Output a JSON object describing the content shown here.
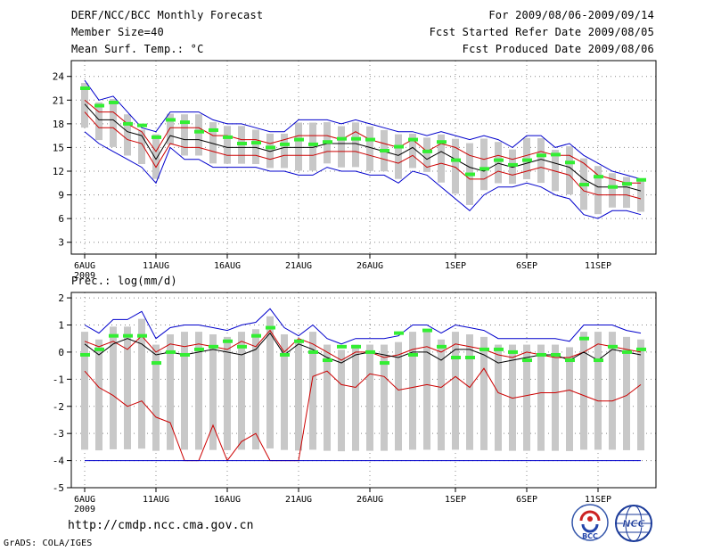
{
  "header": {
    "title": "DERF/NCC/BCC Monthly Forecast",
    "member_size": "Member Size=40",
    "variable": "Mean Surf. Temp.: °C",
    "period": "For 2009/08/06-2009/09/14",
    "started": "Fcst Started Refer Date 2009/08/05",
    "produced": "Fcst Produced Date 2009/08/06"
  },
  "precip_label": "Prec.: log(mm/d)",
  "url": "http://cmdp.ncc.cma.gov.cn",
  "grads_credit": "GrADS: COLA/IGES",
  "logos": {
    "bcc": "BCC",
    "ncc": "NCC"
  },
  "colors": {
    "envelope": "#0000cc",
    "spread": "#cc0000",
    "mean": "#000000",
    "box": "#c8c8c8",
    "median": "#33ee33",
    "grid": "#888888"
  },
  "chart_data": [
    {
      "type": "line",
      "name": "temperature",
      "ylabel": "Mean Surf. Temp. (°C)",
      "ylim": [
        1.5,
        26
      ],
      "yticks": [
        3,
        6,
        9,
        12,
        15,
        18,
        21,
        24
      ],
      "ytick_labels": [
        "3",
        "6",
        "9",
        "12",
        "15",
        "18",
        "21",
        "24"
      ],
      "xticks": [
        0,
        5,
        10,
        15,
        20,
        26,
        31,
        36
      ],
      "xtick_labels": [
        "6AUG",
        "11AUG",
        "16AUG",
        "21AUG",
        "26AUG",
        "1SEP",
        "6SEP",
        "11SEP"
      ],
      "year_label": "2009",
      "days": 40,
      "series": [
        {
          "name": "max",
          "color": "#0000cc",
          "values": [
            23.5,
            21,
            21.5,
            19.5,
            17.5,
            17,
            19.5,
            19.5,
            19.5,
            18.5,
            18,
            18,
            17.5,
            17,
            17,
            18.5,
            18.5,
            18.5,
            18,
            18.5,
            18,
            17.5,
            17,
            17,
            16.5,
            17,
            16.5,
            16,
            16.5,
            16,
            15,
            16.5,
            16.5,
            15,
            15.5,
            14,
            13,
            12,
            11.5,
            11
          ]
        },
        {
          "name": "upper",
          "color": "#cc0000",
          "values": [
            21,
            19.5,
            19.5,
            18,
            17,
            14.5,
            17.5,
            17.5,
            17.5,
            16.5,
            16.5,
            16,
            16,
            15.5,
            16,
            16.5,
            16.5,
            16.5,
            16,
            17,
            16,
            15.5,
            15,
            16,
            14.5,
            15.5,
            15,
            14,
            13.5,
            14,
            13.5,
            14,
            14.5,
            14,
            14,
            13,
            11.5,
            11,
            10.5,
            10.5
          ]
        },
        {
          "name": "mean",
          "color": "#000000",
          "values": [
            20.5,
            18.5,
            18.5,
            17,
            16.5,
            13.5,
            16.5,
            16,
            16,
            15.5,
            15,
            15,
            15,
            14.5,
            15,
            15,
            15,
            15.5,
            15.5,
            15.5,
            15,
            14.5,
            14,
            15,
            13.5,
            14.5,
            13.5,
            12.5,
            12,
            13,
            12.5,
            13,
            13.5,
            13,
            12.5,
            11,
            10,
            10,
            10,
            9.5
          ]
        },
        {
          "name": "lower",
          "color": "#cc0000",
          "values": [
            19.5,
            17.5,
            17.5,
            16,
            15.5,
            12.5,
            15.5,
            15,
            15,
            14.5,
            14,
            14,
            14,
            13.5,
            14,
            14,
            14,
            14.5,
            14.5,
            14.5,
            14,
            13.5,
            13,
            14,
            12.5,
            13,
            12.5,
            11,
            11,
            12,
            11.5,
            12,
            12.5,
            12,
            11.5,
            9.5,
            9,
            9,
            9,
            8.5
          ]
        },
        {
          "name": "min",
          "color": "#0000cc",
          "values": [
            17,
            15.5,
            14.5,
            13.5,
            12.5,
            10.5,
            15,
            13.5,
            13.5,
            12.5,
            12.5,
            12.5,
            12.5,
            12,
            12,
            11.5,
            11.5,
            12.5,
            12,
            12,
            11.5,
            11.5,
            10.5,
            12,
            11.5,
            10,
            8.5,
            7,
            9,
            10,
            10,
            10.5,
            10,
            9,
            8.5,
            6.5,
            6,
            7,
            7,
            6.5
          ]
        }
      ],
      "medians": [
        22.5,
        20.3,
        20.7,
        18,
        17.8,
        16.3,
        18.5,
        18.2,
        17,
        17.2,
        16.3,
        15.5,
        15.6,
        15,
        15.4,
        16,
        15.4,
        15.7,
        16.1,
        16.1,
        16,
        14.6,
        15.1,
        16,
        14.5,
        15.7,
        13.4,
        11.6,
        12.3,
        13.4,
        12.8,
        13.4,
        14,
        14.1,
        13.1,
        10.3,
        11.3,
        10,
        10.4,
        10.9
      ]
    },
    {
      "type": "line",
      "name": "precipitation",
      "ylabel": "Prec.: log(mm/d)",
      "ylim": [
        -5,
        2.2
      ],
      "yticks": [
        -5,
        -4,
        -3,
        -2,
        -1,
        0,
        1,
        2
      ],
      "ytick_labels": [
        "-5",
        "-4",
        "-3",
        "-2",
        "-1",
        "0",
        "1",
        "2"
      ],
      "xticks": [
        0,
        5,
        10,
        15,
        20,
        26,
        31,
        36
      ],
      "xtick_labels": [
        "6AUG",
        "11AUG",
        "16AUG",
        "21AUG",
        "26AUG",
        "1SEP",
        "6SEP",
        "11SEP"
      ],
      "year_label": "2009",
      "days": 40,
      "series": [
        {
          "name": "max",
          "color": "#0000cc",
          "values": [
            1,
            0.7,
            1.2,
            1.2,
            1.5,
            0.5,
            0.9,
            1,
            1,
            0.9,
            0.8,
            1,
            1.1,
            1.6,
            0.9,
            0.6,
            1,
            0.5,
            0.3,
            0.5,
            0.5,
            0.5,
            0.6,
            1,
            1,
            0.7,
            1,
            0.9,
            0.8,
            0.5,
            0.5,
            0.5,
            0.5,
            0.5,
            0.4,
            1,
            1,
            1,
            0.8,
            0.7
          ]
        },
        {
          "name": "upper",
          "color": "#cc0000",
          "values": [
            0.4,
            0.2,
            0.4,
            0.1,
            0.6,
            0,
            0.3,
            0.2,
            0.3,
            0.2,
            0.1,
            0.4,
            0.2,
            0.8,
            0,
            0.5,
            0.3,
            0,
            -0.3,
            0,
            0,
            -0.2,
            -0.1,
            0.1,
            0.2,
            0,
            0.3,
            0.2,
            0.1,
            -0.1,
            -0.2,
            0,
            -0.1,
            -0.2,
            -0.2,
            0,
            0.3,
            0.2,
            0.1,
            0
          ]
        },
        {
          "name": "mean",
          "color": "#000000",
          "values": [
            0.3,
            -0.1,
            0.3,
            0.5,
            0.3,
            -0.1,
            0,
            -0.1,
            0,
            0.1,
            0,
            -0.1,
            0.1,
            0.7,
            -0.1,
            0.3,
            0.1,
            -0.2,
            -0.4,
            -0.1,
            0,
            -0.1,
            -0.2,
            0,
            0,
            -0.3,
            0.1,
            0.1,
            -0.1,
            -0.4,
            -0.3,
            -0.2,
            -0.1,
            -0.1,
            -0.3,
            0,
            -0.3,
            0.1,
            0,
            -0.1
          ]
        },
        {
          "name": "lower",
          "color": "#cc0000",
          "values": [
            -0.7,
            -1.3,
            -1.6,
            -2,
            -1.8,
            -2.4,
            -2.6,
            -4,
            -4,
            -2.7,
            -4,
            -3.3,
            -3,
            -4,
            -4,
            -4,
            -0.9,
            -0.7,
            -1.2,
            -1.3,
            -0.8,
            -0.9,
            -1.4,
            -1.3,
            -1.2,
            -1.3,
            -0.9,
            -1.3,
            -0.6,
            -1.5,
            -1.7,
            -1.6,
            -1.5,
            -1.5,
            -1.4,
            -1.6,
            -1.8,
            -1.8,
            -1.6,
            -1.2
          ]
        },
        {
          "name": "min",
          "color": "#0000cc",
          "values": [
            -4,
            -4,
            -4,
            -4,
            -4,
            -4,
            -4,
            -4,
            -4,
            -4,
            -4,
            -4,
            -4,
            -4,
            -4,
            -4,
            -4,
            -4,
            -4,
            -4,
            -4,
            -4,
            -4,
            -4,
            -4,
            -4,
            -4,
            -4,
            -4,
            -4,
            -4,
            -4,
            -4,
            -4,
            -4,
            -4,
            -4,
            -4,
            -4,
            -4
          ]
        }
      ],
      "medians": [
        -0.1,
        0.1,
        0.6,
        0.6,
        0.6,
        -0.4,
        0,
        -0.1,
        0.1,
        0.2,
        0.4,
        0.2,
        0.6,
        0.9,
        -0.1,
        0.4,
        0,
        -0.3,
        0.2,
        0.2,
        0,
        -0.4,
        0.7,
        -0.1,
        0.8,
        0.2,
        -0.2,
        -0.2,
        0.1,
        0.1,
        0,
        -0.3,
        -0.1,
        -0.1,
        -0.3,
        0.5,
        -0.3,
        0.2,
        0,
        0.1
      ]
    }
  ]
}
